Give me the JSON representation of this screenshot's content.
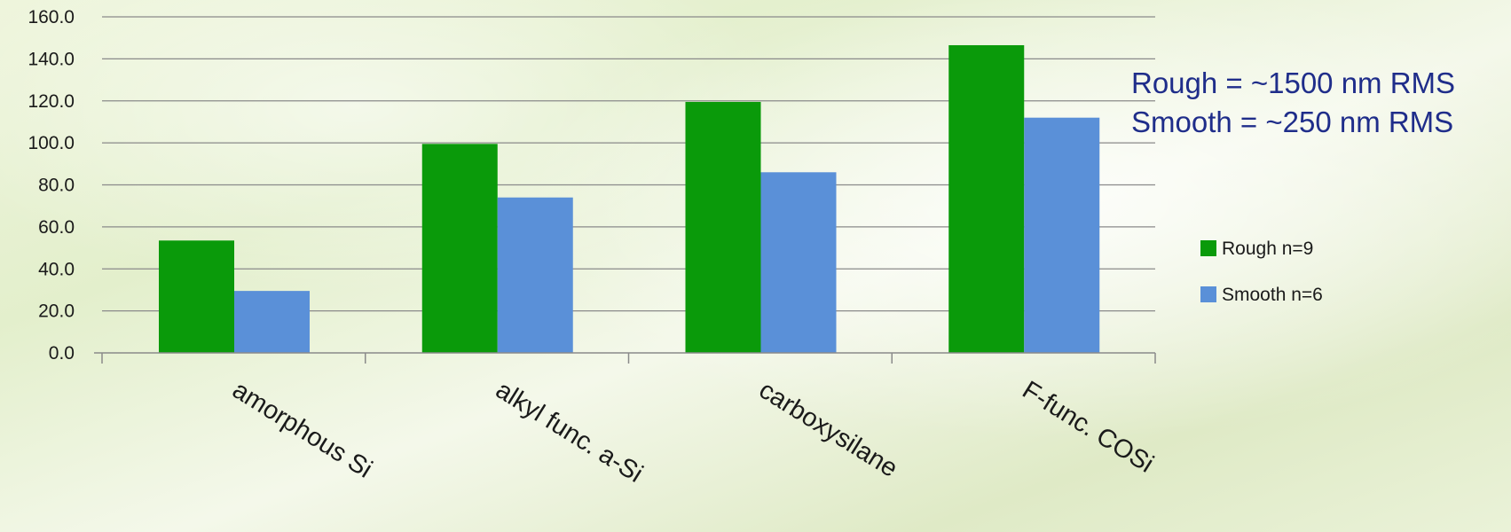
{
  "chart_data": {
    "type": "bar",
    "title": "",
    "xlabel": "",
    "ylabel": "",
    "categories": [
      "amorphous Si",
      "alkyl func. a-Si",
      "carboxysilane",
      "F-func. COSi"
    ],
    "series": [
      {
        "name": "Rough n=9",
        "color": "#0a9a0a",
        "values": [
          53.5,
          99.5,
          119.5,
          146.5
        ]
      },
      {
        "name": "Smooth n=6",
        "color": "#5a90d8",
        "values": [
          29.5,
          74.0,
          86.0,
          112.0
        ]
      }
    ],
    "ylim": [
      0,
      160
    ],
    "yticks": [
      0,
      20,
      40,
      60,
      80,
      100,
      120,
      140,
      160
    ],
    "ytick_labels": [
      "0.0",
      "20.0",
      "40.0",
      "60.0",
      "80.0",
      "100.0",
      "120.0",
      "140.0",
      "160.0"
    ],
    "grid": true,
    "legend_position": "right",
    "annotations": [
      "Rough = ~1500 nm RMS",
      "Smooth = ~250 nm RMS"
    ]
  }
}
